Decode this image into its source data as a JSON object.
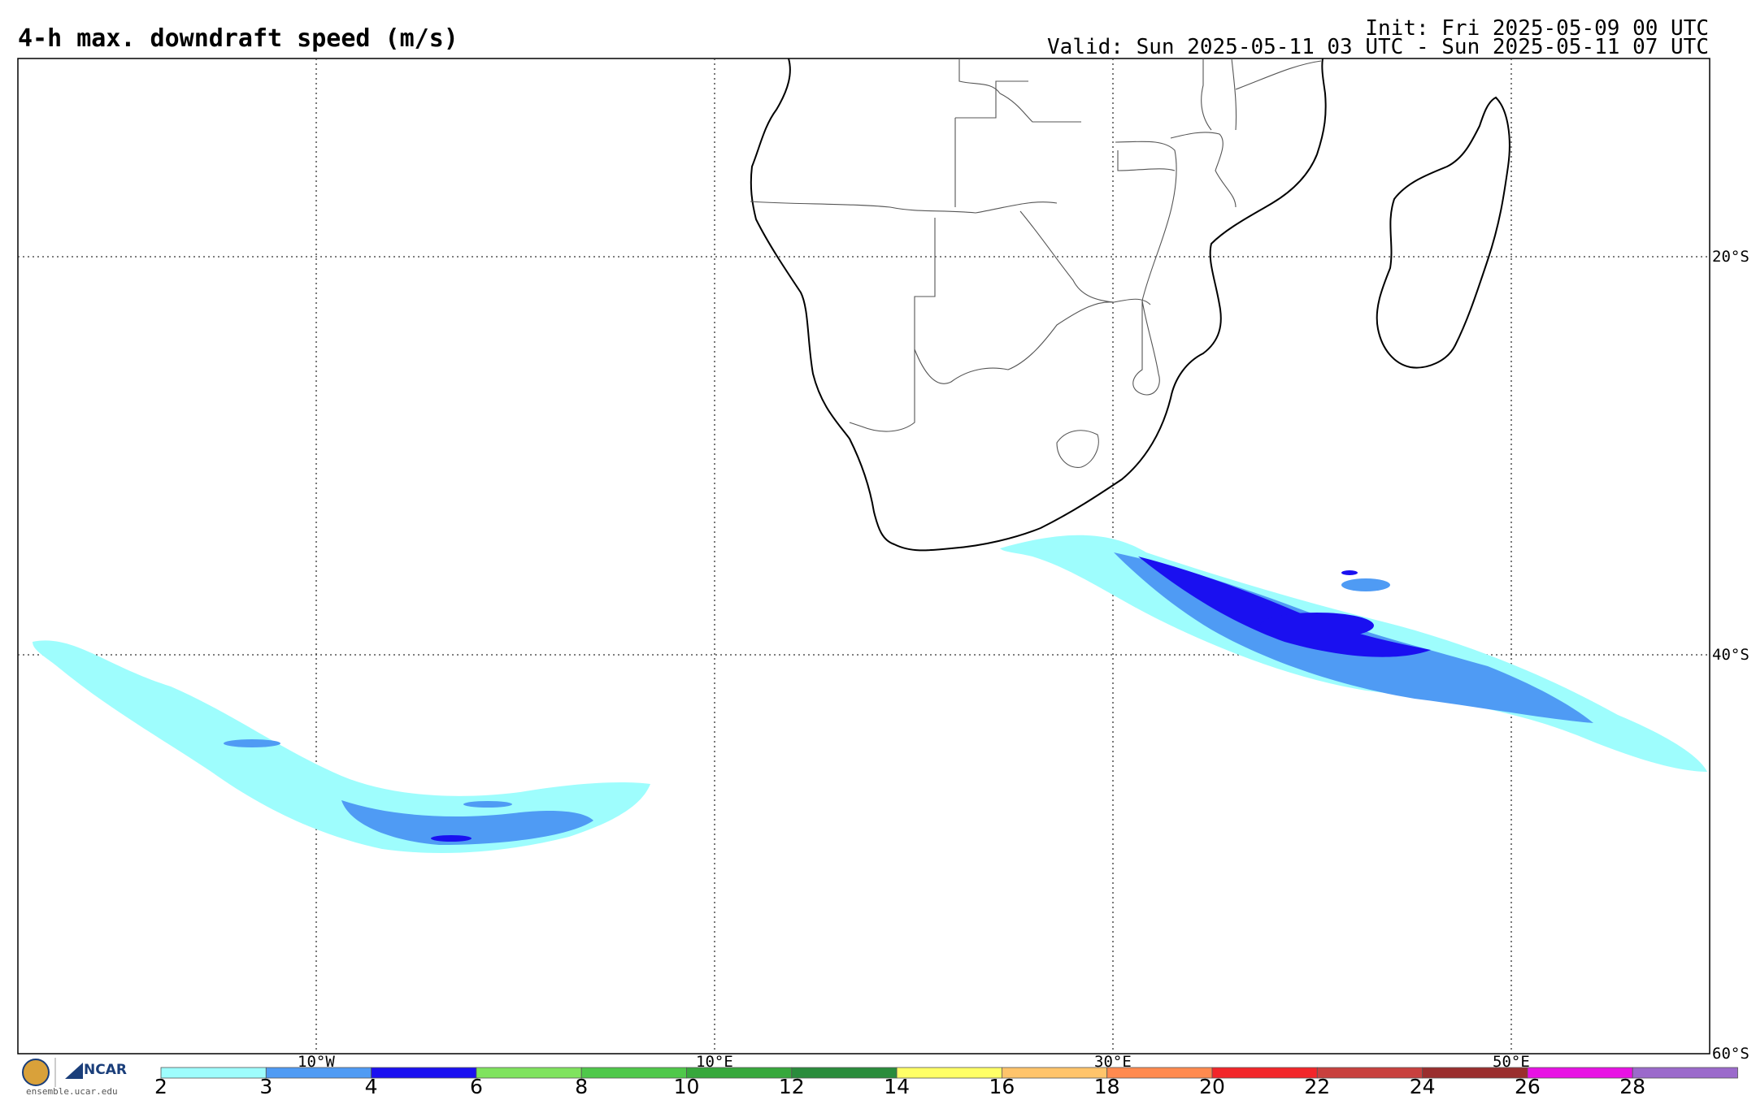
{
  "header": {
    "title": "4-h max. downdraft speed (m/s)",
    "init": "Init: Fri 2025-05-09 00 UTC",
    "valid": "Valid: Sun 2025-05-11 03 UTC - Sun 2025-05-11 07 UTC"
  },
  "map": {
    "lat_labels": [
      "20°S",
      "40°S",
      "60°S"
    ],
    "lon_labels": [
      "10°W",
      "10°E",
      "30°E",
      "50°E"
    ],
    "features": [
      "southern-africa-coastline",
      "madagascar",
      "country-borders"
    ]
  },
  "colorbar": {
    "ticks": [
      "2",
      "3",
      "4",
      "6",
      "8",
      "10",
      "12",
      "14",
      "16",
      "18",
      "20",
      "22",
      "24",
      "26",
      "28"
    ],
    "colors": [
      "#9efdfd",
      "#4f9bf4",
      "#1a10f0",
      "#7fe35e",
      "#4fc84a",
      "#37a83c",
      "#2a8c3c",
      "#ffff66",
      "#ffc46b",
      "#ff8a4f",
      "#f2262a",
      "#c8403e",
      "#9a2e2e",
      "#e812e4",
      "#9b6acb"
    ]
  },
  "logo": {
    "ncar": "NCAR",
    "nsf": "NSF",
    "url": "ensemble.ucar.edu"
  }
}
